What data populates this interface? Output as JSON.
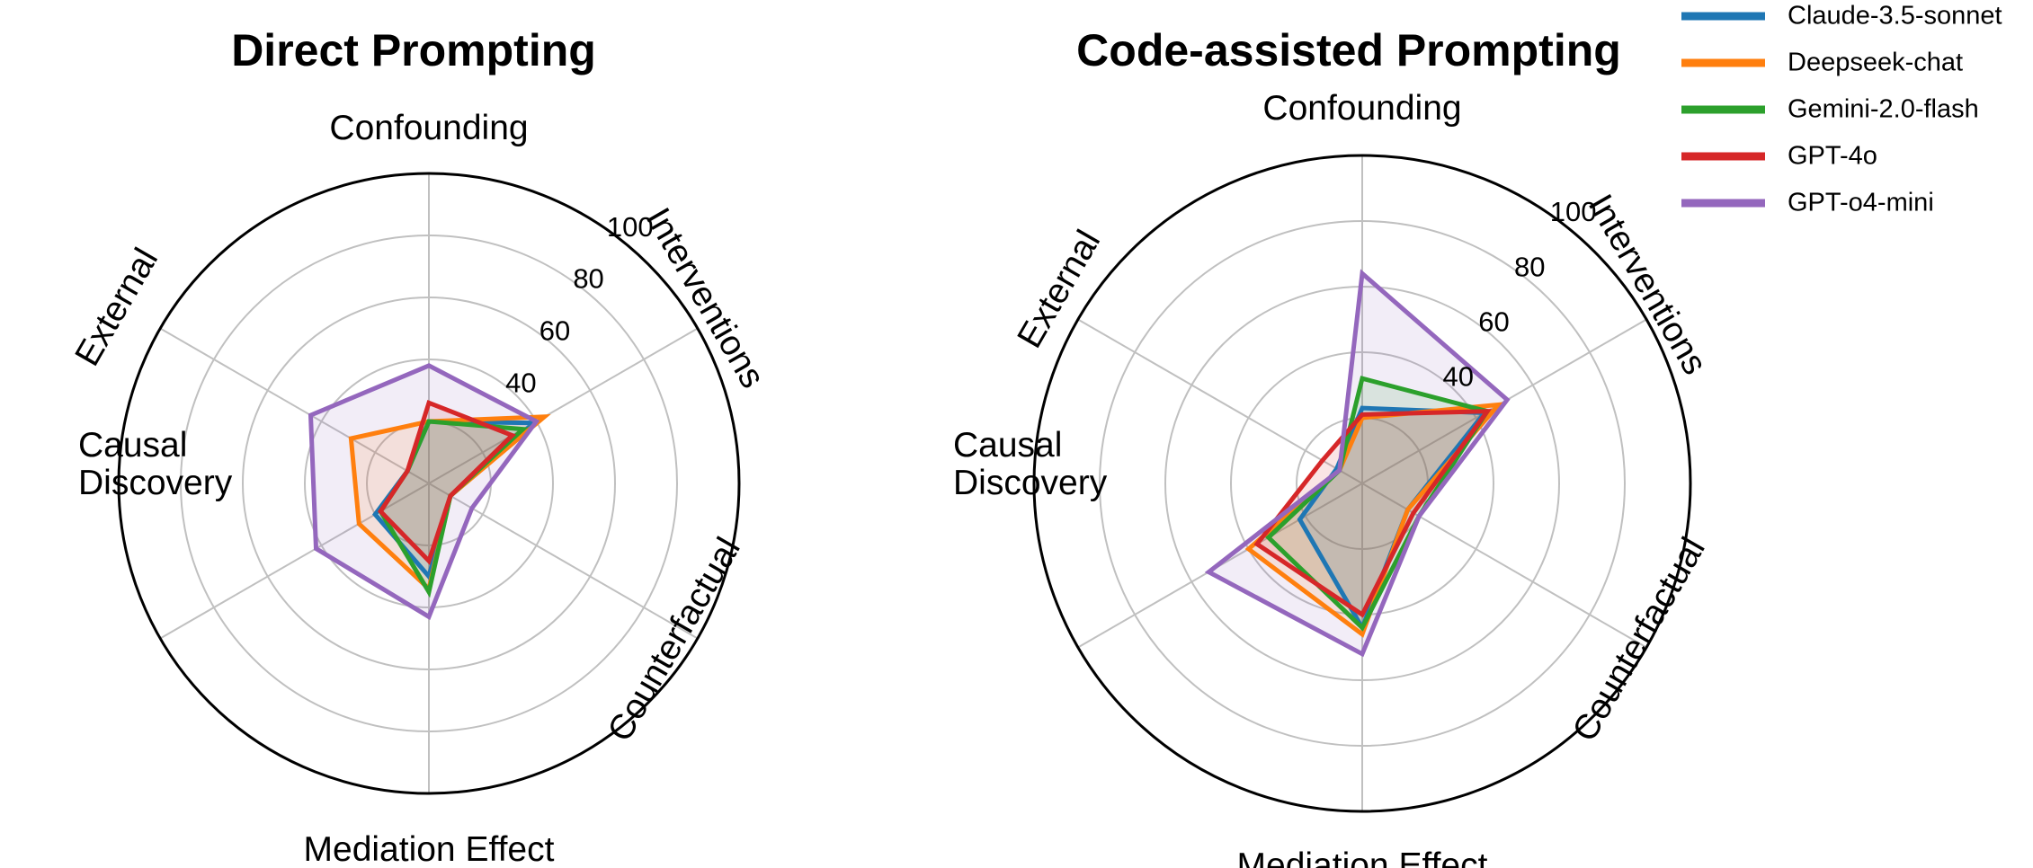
{
  "chart_data": [
    {
      "type": "radar",
      "title": "Direct Prompting",
      "axes": [
        "Confounding",
        "Interventions",
        "Counterfactual",
        "Mediation Effect",
        "Causal Discovery",
        "External"
      ],
      "axis_label_lines": [
        [
          "Confounding"
        ],
        [
          "Interventions"
        ],
        [
          "Counterfactual"
        ],
        [
          "Mediation Effect"
        ],
        [
          "Causal",
          "Discovery"
        ],
        [
          "External"
        ]
      ],
      "rlim": [
        0,
        100
      ],
      "rticks": [
        40,
        60,
        80,
        100
      ],
      "grid": true,
      "series": [
        {
          "name": "Claude-3.5-sonnet",
          "values": [
            20,
            39,
            8,
            30,
            20,
            8
          ]
        },
        {
          "name": "Deepseek-chat",
          "values": [
            20,
            43,
            8,
            34,
            26,
            29
          ]
        },
        {
          "name": "Gemini-2.0-flash",
          "values": [
            20,
            35,
            8,
            35,
            18,
            8
          ]
        },
        {
          "name": "GPT-4o",
          "values": [
            26,
            31,
            8,
            25,
            18,
            8
          ]
        },
        {
          "name": "GPT-o4-mini",
          "values": [
            38,
            40,
            16,
            43,
            42,
            44
          ]
        }
      ]
    },
    {
      "type": "radar",
      "title": "Code-assisted Prompting",
      "axes": [
        "Confounding",
        "Interventions",
        "Counterfactual",
        "Mediation Effect",
        "Causal Discovery",
        "External"
      ],
      "axis_label_lines": [
        [
          "Confounding"
        ],
        [
          "Interventions"
        ],
        [
          "Counterfactual"
        ],
        [
          "Mediation Effect"
        ],
        [
          "Causal",
          "Discovery"
        ],
        [
          "External"
        ]
      ],
      "rlim": [
        0,
        100
      ],
      "rticks": [
        40,
        60,
        80,
        100
      ],
      "grid": true,
      "series": [
        {
          "name": "Claude-3.5-sonnet",
          "values": [
            23,
            43,
            16,
            44,
            22,
            9
          ]
        },
        {
          "name": "Deepseek-chat",
          "values": [
            20,
            48,
            16,
            46,
            40,
            8
          ]
        },
        {
          "name": "Gemini-2.0-flash",
          "values": [
            32,
            44,
            20,
            44,
            33,
            8
          ]
        },
        {
          "name": "GPT-4o",
          "values": [
            21,
            44,
            18,
            40,
            37,
            14
          ]
        },
        {
          "name": "GPT-o4-mini",
          "values": [
            64,
            51,
            20,
            52,
            54,
            8
          ]
        }
      ]
    }
  ],
  "legend": {
    "placement": "top-right",
    "items": [
      {
        "name": "Claude-3.5-sonnet",
        "color": "#1f77b4"
      },
      {
        "name": "Deepseek-chat",
        "color": "#ff7f0e"
      },
      {
        "name": "Gemini-2.0-flash",
        "color": "#2ca02c"
      },
      {
        "name": "GPT-4o",
        "color": "#d62728"
      },
      {
        "name": "GPT-o4-mini",
        "color": "#9467bd"
      }
    ]
  }
}
